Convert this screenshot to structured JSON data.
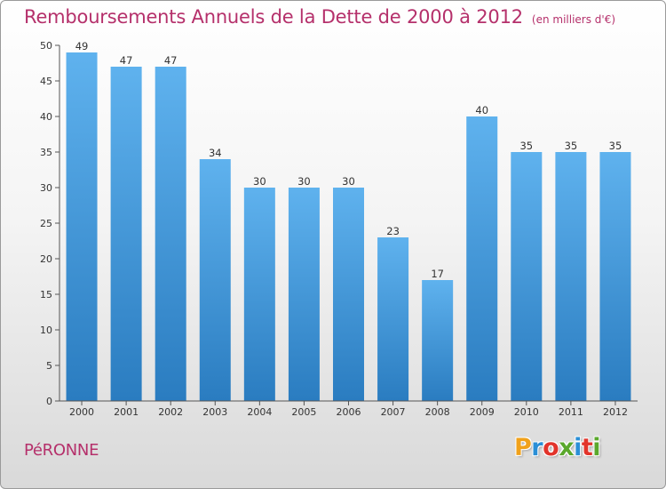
{
  "title": "Remboursements Annuels de la Dette de 2000 à 2012",
  "unit_note": "(en milliers d'€)",
  "commune": "PéRONNE",
  "logo": {
    "letters": [
      "P",
      "r",
      "o",
      "x",
      "i",
      "t",
      "i"
    ],
    "colors": [
      "#f0a11a",
      "#2b8fd6",
      "#e2342b",
      "#5aa82c",
      "#2b8fd6",
      "#e2342b",
      "#5aa82c"
    ]
  },
  "colors": {
    "title": "#b5306b",
    "bar_top": "#5fb2ee",
    "bar_bottom": "#2a7cc0"
  },
  "chart_data": {
    "type": "bar",
    "title": "Remboursements Annuels de la Dette de 2000 à 2012",
    "subtitle": "(en milliers d'€)",
    "xlabel": "",
    "ylabel": "",
    "categories": [
      "2000",
      "2001",
      "2002",
      "2003",
      "2004",
      "2005",
      "2006",
      "2007",
      "2008",
      "2009",
      "2010",
      "2011",
      "2012"
    ],
    "values": [
      49,
      47,
      47,
      34,
      30,
      30,
      30,
      23,
      17,
      40,
      35,
      35,
      35
    ],
    "ylim": [
      0,
      50
    ],
    "yticks": [
      0,
      5,
      10,
      15,
      20,
      25,
      30,
      35,
      40,
      45,
      50
    ],
    "grid": false,
    "data_labels": true
  }
}
